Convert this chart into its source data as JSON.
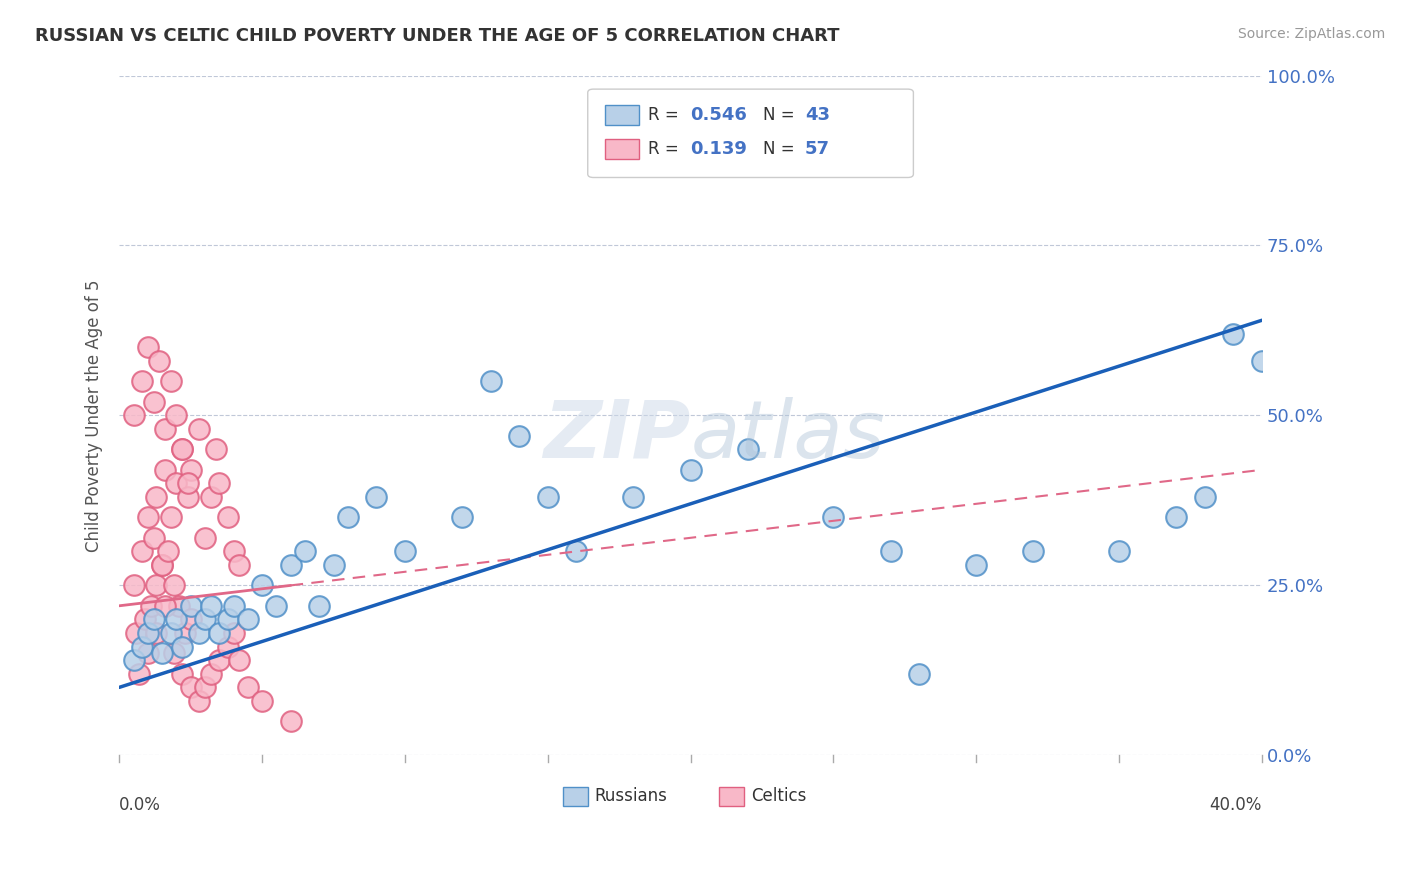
{
  "title": "RUSSIAN VS CELTIC CHILD POVERTY UNDER THE AGE OF 5 CORRELATION CHART",
  "source": "Source: ZipAtlas.com",
  "ylabel": "Child Poverty Under the Age of 5",
  "ytick_vals": [
    0.0,
    0.25,
    0.5,
    0.75,
    1.0
  ],
  "ytick_labels": [
    "0.0%",
    "25.0%",
    "50.0%",
    "75.0%",
    "100.0%"
  ],
  "xlim": [
    0,
    0.4
  ],
  "ylim": [
    0,
    1.0
  ],
  "legend_r1": "0.546",
  "legend_n1": "43",
  "legend_r2": "0.139",
  "legend_n2": "57",
  "russian_fill": "#b8d0e8",
  "russian_edge": "#5090c8",
  "celtic_fill": "#f8b8c8",
  "celtic_edge": "#e06080",
  "russian_line_color": "#1a5fb8",
  "celtic_line_color": "#e06888",
  "watermark": "ZIPatlas",
  "legend_color": "#4472c4",
  "russians_x": [
    0.005,
    0.008,
    0.01,
    0.012,
    0.015,
    0.018,
    0.02,
    0.022,
    0.025,
    0.028,
    0.03,
    0.032,
    0.035,
    0.038,
    0.04,
    0.045,
    0.05,
    0.055,
    0.06,
    0.065,
    0.07,
    0.075,
    0.08,
    0.09,
    0.1,
    0.12,
    0.13,
    0.14,
    0.15,
    0.16,
    0.18,
    0.2,
    0.22,
    0.25,
    0.27,
    0.28,
    0.3,
    0.32,
    0.35,
    0.37,
    0.38,
    0.39,
    0.4
  ],
  "russians_y": [
    0.14,
    0.16,
    0.18,
    0.2,
    0.15,
    0.18,
    0.2,
    0.16,
    0.22,
    0.18,
    0.2,
    0.22,
    0.18,
    0.2,
    0.22,
    0.2,
    0.25,
    0.22,
    0.28,
    0.3,
    0.22,
    0.28,
    0.35,
    0.38,
    0.3,
    0.35,
    0.55,
    0.47,
    0.38,
    0.3,
    0.38,
    0.42,
    0.45,
    0.35,
    0.3,
    0.12,
    0.28,
    0.3,
    0.3,
    0.35,
    0.38,
    0.62,
    0.58
  ],
  "celtics_x": [
    0.005,
    0.008,
    0.01,
    0.012,
    0.013,
    0.015,
    0.016,
    0.018,
    0.02,
    0.022,
    0.024,
    0.025,
    0.028,
    0.03,
    0.032,
    0.034,
    0.035,
    0.038,
    0.04,
    0.042,
    0.005,
    0.008,
    0.01,
    0.012,
    0.014,
    0.016,
    0.018,
    0.02,
    0.022,
    0.024,
    0.006,
    0.009,
    0.011,
    0.013,
    0.015,
    0.017,
    0.019,
    0.021,
    0.023,
    0.025,
    0.007,
    0.01,
    0.013,
    0.016,
    0.019,
    0.022,
    0.025,
    0.028,
    0.03,
    0.032,
    0.035,
    0.038,
    0.04,
    0.042,
    0.045,
    0.05,
    0.06
  ],
  "celtics_y": [
    0.25,
    0.3,
    0.35,
    0.32,
    0.38,
    0.28,
    0.42,
    0.35,
    0.4,
    0.45,
    0.38,
    0.42,
    0.48,
    0.32,
    0.38,
    0.45,
    0.4,
    0.35,
    0.3,
    0.28,
    0.5,
    0.55,
    0.6,
    0.52,
    0.58,
    0.48,
    0.55,
    0.5,
    0.45,
    0.4,
    0.18,
    0.2,
    0.22,
    0.25,
    0.28,
    0.3,
    0.25,
    0.22,
    0.18,
    0.2,
    0.12,
    0.15,
    0.18,
    0.22,
    0.15,
    0.12,
    0.1,
    0.08,
    0.1,
    0.12,
    0.14,
    0.16,
    0.18,
    0.14,
    0.1,
    0.08,
    0.05
  ]
}
